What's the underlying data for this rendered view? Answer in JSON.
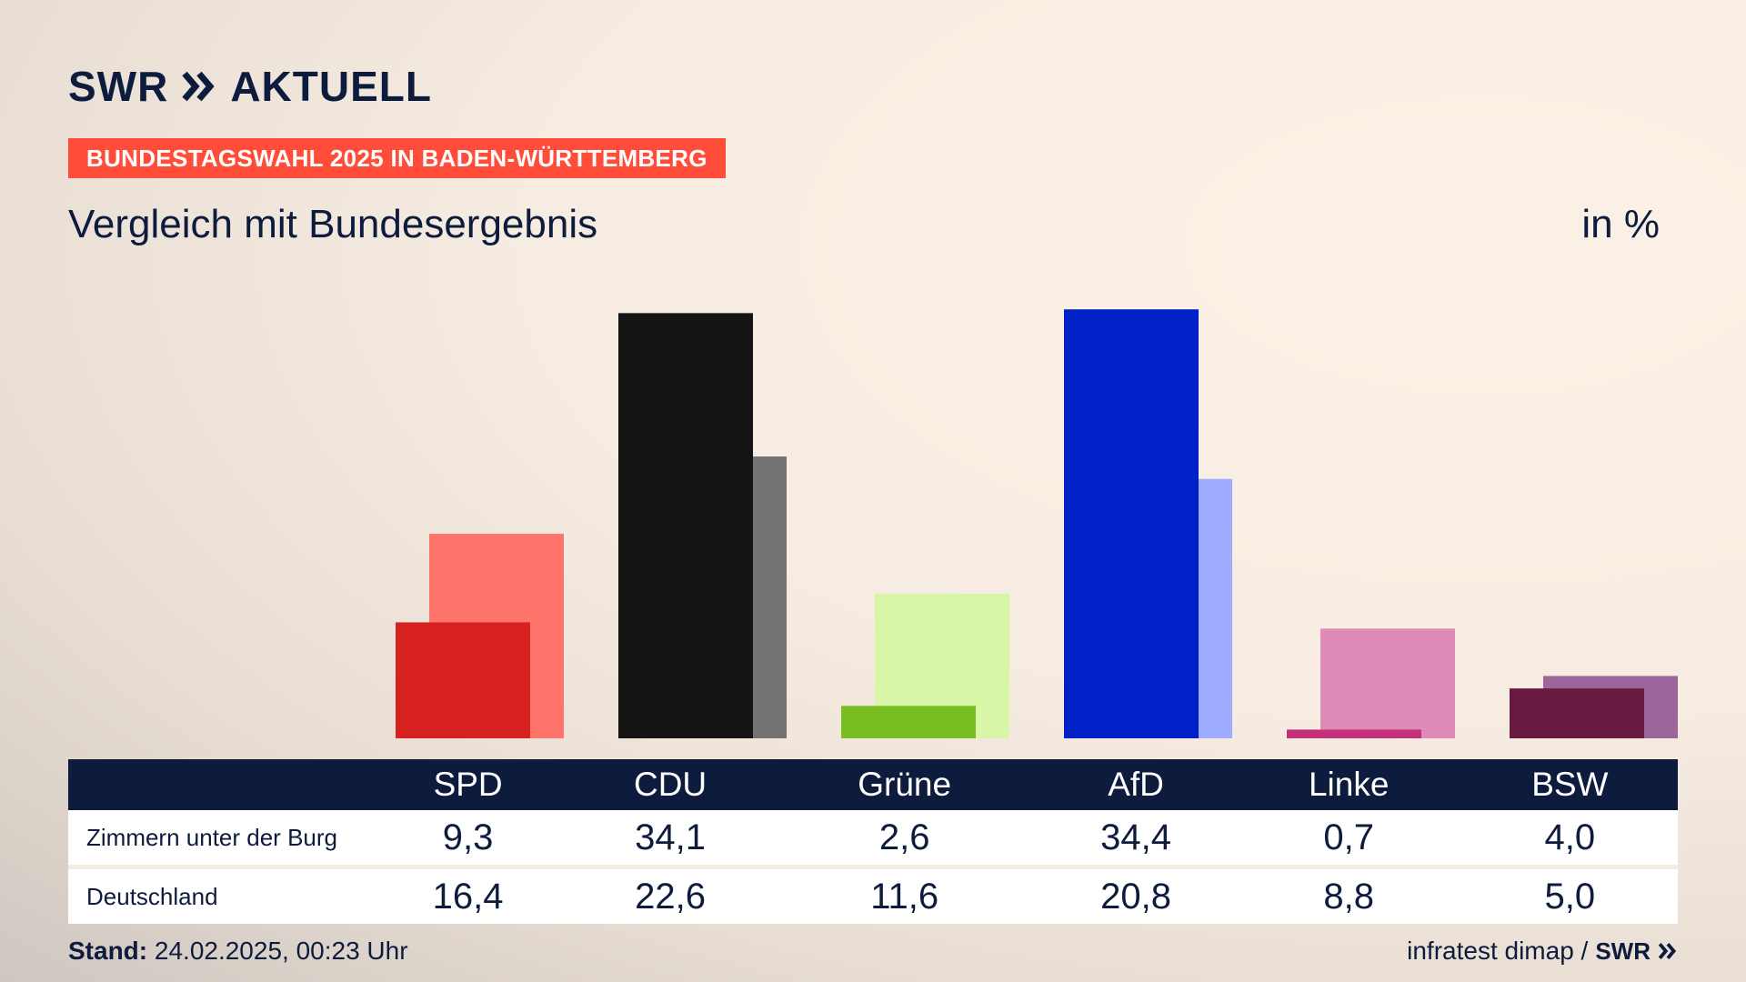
{
  "brand": {
    "swr": "SWR",
    "aktuell": "AKTUELL"
  },
  "topic": "BUNDESTAGSWAHL 2025 IN BADEN-WÜRTTEMBERG",
  "subtitle": "Vergleich mit Bundesergebnis",
  "unit": "in %",
  "chart_data": {
    "type": "bar",
    "categories": [
      "SPD",
      "CDU",
      "Grüne",
      "AfD",
      "Linke",
      "BSW"
    ],
    "series": [
      {
        "name": "Zimmern unter der Burg",
        "values": [
          9.3,
          34.1,
          2.6,
          34.4,
          0.7,
          4.0
        ],
        "labels": [
          "9,3",
          "34,1",
          "2,6",
          "34,4",
          "0,7",
          "4,0"
        ],
        "colors": [
          "#d72020",
          "#141414",
          "#78be20",
          "#0020c8",
          "#c4307a",
          "#6a1a40"
        ]
      },
      {
        "name": "Deutschland",
        "values": [
          16.4,
          22.6,
          11.6,
          20.8,
          8.8,
          5.0
        ],
        "labels": [
          "16,4",
          "22,6",
          "11,6",
          "20,8",
          "8,8",
          "5,0"
        ],
        "colors": [
          "#ff746a",
          "#757371",
          "#d8f5a8",
          "#9eacff",
          "#e08ab8",
          "#9c669c"
        ]
      }
    ],
    "ylim": [
      0,
      35
    ]
  },
  "footer": {
    "stand_label": "Stand:",
    "stand_value": "24.02.2025, 00:23 Uhr",
    "source": "infratest dimap /",
    "swr": "SWR"
  }
}
